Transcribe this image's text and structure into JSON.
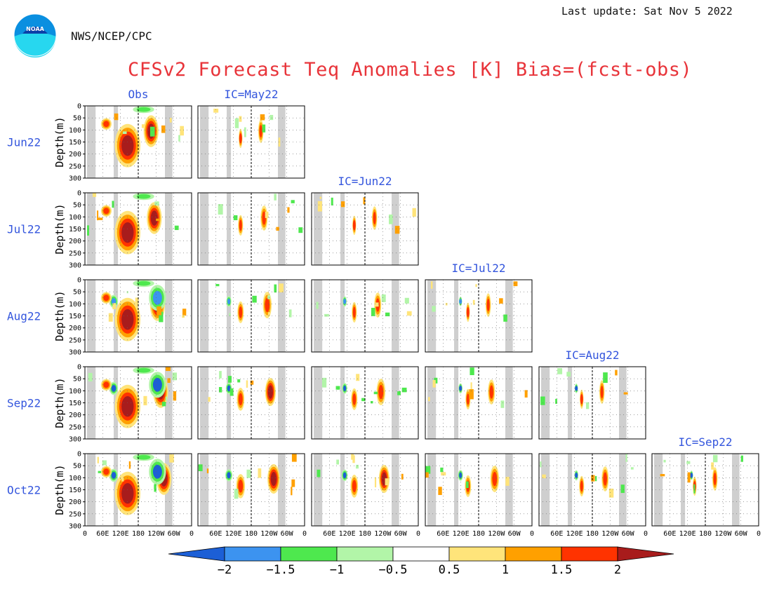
{
  "header": {
    "last_update": "Last update: Sat Nov 5 2022",
    "agency": "NWS/NCEP/CPC",
    "title": "CFSv2 Forecast Teq Anomalies [K] Bias=(fcst-obs)",
    "logo_text": "NOAA"
  },
  "chart_data": {
    "type": "heatmap",
    "title": "CFSv2 Forecast Teq Anomalies [K] Bias=(fcst-obs)",
    "ylabel": "Depth(m)",
    "y_ticks": [
      "0",
      "50",
      "100",
      "150",
      "200",
      "250",
      "300"
    ],
    "ylim": [
      300,
      0
    ],
    "x_ticks": [
      "0",
      "60E",
      "120E",
      "180",
      "120W",
      "60W",
      "0"
    ],
    "columns": [
      "Obs",
      "IC=May22",
      "IC=Jun22",
      "IC=Jul22",
      "IC=Aug22",
      "IC=Sep22"
    ],
    "rows": [
      "Jun22",
      "Jul22",
      "Aug22",
      "Sep22",
      "Oct22"
    ],
    "colorbar": {
      "levels": [
        "-2",
        "-1.5",
        "-1",
        "-0.5",
        "0.5",
        "1",
        "1.5",
        "2"
      ],
      "colors": [
        "#1c5fd6",
        "#3c93f0",
        "#4ee84e",
        "#b2f5a8",
        "#ffffff",
        "#ffe47a",
        "#ffa000",
        "#ff3300",
        "#a81c1c"
      ]
    },
    "panels_present": [
      [
        true,
        true,
        false,
        false,
        false,
        false
      ],
      [
        true,
        true,
        true,
        false,
        false,
        false
      ],
      [
        true,
        true,
        true,
        true,
        false,
        false
      ],
      [
        true,
        true,
        true,
        true,
        true,
        false
      ],
      [
        true,
        true,
        true,
        true,
        true,
        true
      ]
    ]
  }
}
